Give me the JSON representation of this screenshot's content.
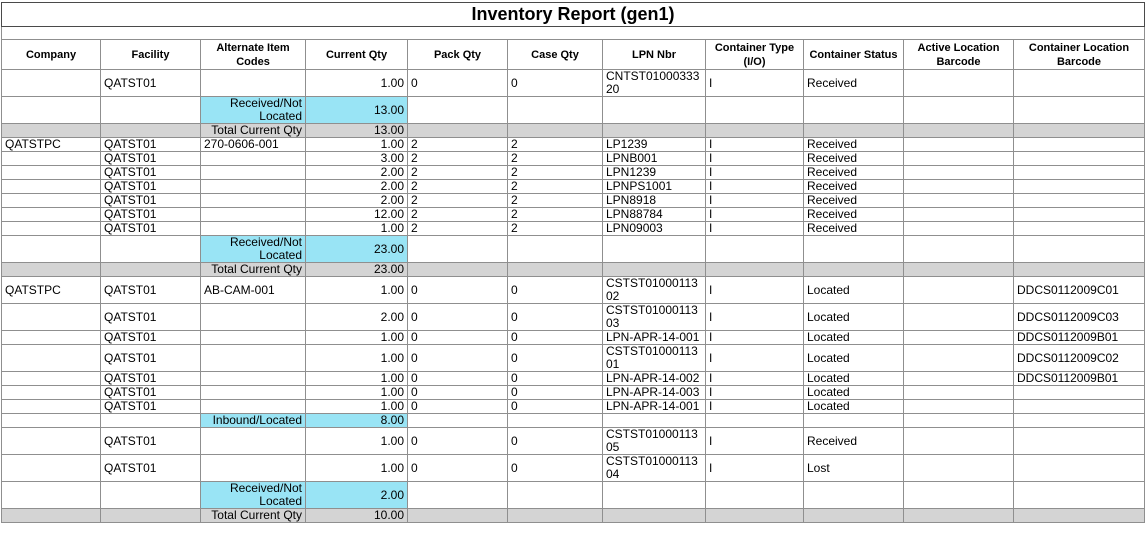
{
  "report": {
    "title": "Inventory Report (gen1)"
  },
  "colors": {
    "subtotal_highlight": "#99e4f5",
    "total_row_bg": "#d4d4d4"
  },
  "table": {
    "columns": [
      {
        "key": "company",
        "label": "Company"
      },
      {
        "key": "facility",
        "label": "Facility"
      },
      {
        "key": "alt",
        "label": "Alternate Item Codes"
      },
      {
        "key": "qty",
        "label": "Current Qty",
        "align": "right"
      },
      {
        "key": "pack",
        "label": "Pack Qty"
      },
      {
        "key": "case",
        "label": "Case Qty"
      },
      {
        "key": "lpn",
        "label": "LPN Nbr"
      },
      {
        "key": "ctype",
        "label": "Container Type (I/O)"
      },
      {
        "key": "cstatus",
        "label": "Container Status"
      },
      {
        "key": "active",
        "label": "Active Location Barcode"
      },
      {
        "key": "cloc",
        "label": "Container Location Barcode"
      }
    ],
    "rows": [
      {
        "type": "data",
        "company": "",
        "facility": "QATST01",
        "alt": "",
        "qty": "1.00",
        "pack": "0",
        "case": "0",
        "lpn": "CNTST0100033320",
        "ctype": "I",
        "cstatus": "Received",
        "active": "",
        "cloc": ""
      },
      {
        "type": "subtotal",
        "label": "Received/Not Located",
        "value": "13.00"
      },
      {
        "type": "total",
        "label": "Total Current Qty",
        "value": "13.00"
      },
      {
        "type": "data",
        "company": "QATSTPC",
        "facility": "QATST01",
        "alt": "270-0606-001",
        "qty": "1.00",
        "pack": "2",
        "case": "2",
        "lpn": "LP1239",
        "ctype": "I",
        "cstatus": "Received",
        "active": "",
        "cloc": ""
      },
      {
        "type": "data",
        "company": "",
        "facility": "QATST01",
        "alt": "",
        "qty": "3.00",
        "pack": "2",
        "case": "2",
        "lpn": "LPNB001",
        "ctype": "I",
        "cstatus": "Received",
        "active": "",
        "cloc": ""
      },
      {
        "type": "data",
        "company": "",
        "facility": "QATST01",
        "alt": "",
        "qty": "2.00",
        "pack": "2",
        "case": "2",
        "lpn": "LPN1239",
        "ctype": "I",
        "cstatus": "Received",
        "active": "",
        "cloc": ""
      },
      {
        "type": "data",
        "company": "",
        "facility": "QATST01",
        "alt": "",
        "qty": "2.00",
        "pack": "2",
        "case": "2",
        "lpn": "LPNPS1001",
        "ctype": "I",
        "cstatus": "Received",
        "active": "",
        "cloc": ""
      },
      {
        "type": "data",
        "company": "",
        "facility": "QATST01",
        "alt": "",
        "qty": "2.00",
        "pack": "2",
        "case": "2",
        "lpn": "LPN8918",
        "ctype": "I",
        "cstatus": "Received",
        "active": "",
        "cloc": ""
      },
      {
        "type": "data",
        "company": "",
        "facility": "QATST01",
        "alt": "",
        "qty": "12.00",
        "pack": "2",
        "case": "2",
        "lpn": "LPN88784",
        "ctype": "I",
        "cstatus": "Received",
        "active": "",
        "cloc": ""
      },
      {
        "type": "data",
        "company": "",
        "facility": "QATST01",
        "alt": "",
        "qty": "1.00",
        "pack": "2",
        "case": "2",
        "lpn": "LPN09003",
        "ctype": "I",
        "cstatus": "Received",
        "active": "",
        "cloc": ""
      },
      {
        "type": "subtotal",
        "label": "Received/Not Located",
        "value": "23.00"
      },
      {
        "type": "total",
        "label": "Total Current Qty",
        "value": "23.00"
      },
      {
        "type": "data",
        "company": "QATSTPC",
        "facility": "QATST01",
        "alt": "AB-CAM-001",
        "qty": "1.00",
        "pack": "0",
        "case": "0",
        "lpn": "CSTST0100011302",
        "ctype": "I",
        "cstatus": "Located",
        "active": "",
        "cloc": "DDCS0112009C01"
      },
      {
        "type": "data",
        "company": "",
        "facility": "QATST01",
        "alt": "",
        "qty": "2.00",
        "pack": "0",
        "case": "0",
        "lpn": "CSTST0100011303",
        "ctype": "I",
        "cstatus": "Located",
        "active": "",
        "cloc": "DDCS0112009C03"
      },
      {
        "type": "data",
        "company": "",
        "facility": "QATST01",
        "alt": "",
        "qty": "1.00",
        "pack": "0",
        "case": "0",
        "lpn": "LPN-APR-14-001",
        "ctype": "I",
        "cstatus": "Located",
        "active": "",
        "cloc": "DDCS0112009B01"
      },
      {
        "type": "data",
        "company": "",
        "facility": "QATST01",
        "alt": "",
        "qty": "1.00",
        "pack": "0",
        "case": "0",
        "lpn": "CSTST0100011301",
        "ctype": "I",
        "cstatus": "Located",
        "active": "",
        "cloc": "DDCS0112009C02"
      },
      {
        "type": "data",
        "company": "",
        "facility": "QATST01",
        "alt": "",
        "qty": "1.00",
        "pack": "0",
        "case": "0",
        "lpn": "LPN-APR-14-002",
        "ctype": "I",
        "cstatus": "Located",
        "active": "",
        "cloc": "DDCS0112009B01"
      },
      {
        "type": "data",
        "company": "",
        "facility": "QATST01",
        "alt": "",
        "qty": "1.00",
        "pack": "0",
        "case": "0",
        "lpn": "LPN-APR-14-003",
        "ctype": "I",
        "cstatus": "Located",
        "active": "",
        "cloc": ""
      },
      {
        "type": "data",
        "company": "",
        "facility": "QATST01",
        "alt": "",
        "qty": "1.00",
        "pack": "0",
        "case": "0",
        "lpn": "LPN-APR-14-001",
        "ctype": "I",
        "cstatus": "Located",
        "active": "",
        "cloc": ""
      },
      {
        "type": "subtotal",
        "label": "Inbound/Located",
        "value": "8.00"
      },
      {
        "type": "data",
        "company": "",
        "facility": "QATST01",
        "alt": "",
        "qty": "1.00",
        "pack": "0",
        "case": "0",
        "lpn": "CSTST0100011305",
        "ctype": "I",
        "cstatus": "Received",
        "active": "",
        "cloc": ""
      },
      {
        "type": "data",
        "company": "",
        "facility": "QATST01",
        "alt": "",
        "qty": "1.00",
        "pack": "0",
        "case": "0",
        "lpn": "CSTST0100011304",
        "ctype": "I",
        "cstatus": "Lost",
        "active": "",
        "cloc": ""
      },
      {
        "type": "subtotal",
        "label": "Received/Not Located",
        "value": "2.00"
      },
      {
        "type": "total",
        "label": "Total Current Qty",
        "value": "10.00"
      }
    ]
  }
}
